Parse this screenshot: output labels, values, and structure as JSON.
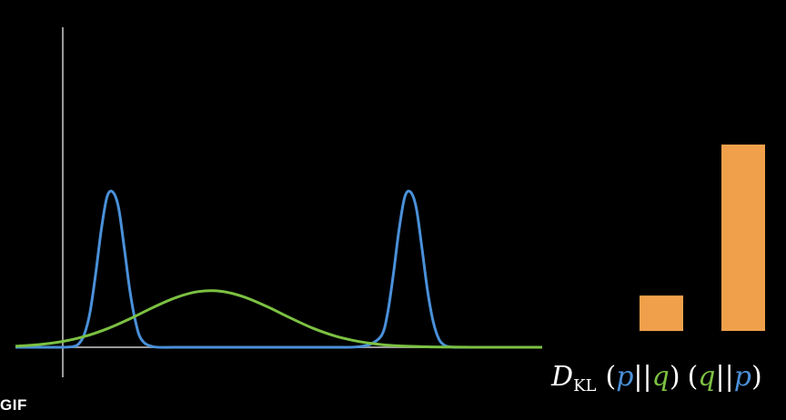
{
  "badge": "GIF",
  "colors": {
    "background": "#000000",
    "p": "#4a90d9",
    "q": "#7cc142",
    "bar": "#f0a04b",
    "axis": "#9a9a9a",
    "text": "#ffffff"
  },
  "chart_data": [
    {
      "type": "line",
      "title": "",
      "xlabel": "",
      "ylabel": "",
      "grid": false,
      "xlim": [
        -2.0,
        2.6
      ],
      "ylim": [
        0,
        1.3
      ],
      "series": [
        {
          "name": "p",
          "color": "#4a90d9",
          "x": [
            -2.0,
            -1.8,
            -1.6,
            -1.5,
            -1.45,
            -1.4,
            -1.35,
            -1.3,
            -1.25,
            -1.2,
            -1.15,
            -1.1,
            -1.05,
            -1.0,
            -0.95,
            -0.9,
            -0.8,
            -0.6,
            -0.2,
            0.2,
            0.6,
            0.9,
            1.0,
            1.1,
            1.2,
            1.25,
            1.3,
            1.35,
            1.4,
            1.45,
            1.5,
            1.55,
            1.6,
            1.65,
            1.7,
            1.75,
            1.8,
            1.85,
            1.9,
            2.0,
            2.2,
            2.6
          ],
          "y": [
            0,
            0,
            0,
            0.004,
            0.02,
            0.08,
            0.22,
            0.47,
            0.76,
            0.97,
            1.0,
            0.9,
            0.64,
            0.36,
            0.16,
            0.05,
            0.004,
            0,
            0,
            0,
            0,
            0,
            0.004,
            0.02,
            0.08,
            0.22,
            0.47,
            0.76,
            0.97,
            1.0,
            0.9,
            0.64,
            0.36,
            0.16,
            0.05,
            0.012,
            0.002,
            0,
            0,
            0,
            0,
            0
          ]
        },
        {
          "name": "q",
          "color": "#7cc142",
          "x": [
            -2.0,
            -1.8,
            -1.6,
            -1.4,
            -1.2,
            -1.0,
            -0.8,
            -0.6,
            -0.4,
            -0.2,
            0.0,
            0.2,
            0.4,
            0.6,
            0.8,
            1.0,
            1.2,
            1.4,
            1.6,
            1.8,
            2.0,
            2.2,
            2.4,
            2.6
          ],
          "y": [
            0.007,
            0.017,
            0.036,
            0.069,
            0.119,
            0.184,
            0.256,
            0.32,
            0.359,
            0.36,
            0.323,
            0.261,
            0.189,
            0.122,
            0.071,
            0.037,
            0.017,
            0.007,
            0.003,
            0.001,
            0,
            0,
            0,
            0
          ]
        }
      ]
    },
    {
      "type": "bar",
      "title": "",
      "categories": [
        "(p||q)",
        "(q||p)"
      ],
      "values": [
        0.19,
        1.0
      ],
      "ylim": [
        0,
        1.0
      ],
      "label": {
        "main": "D",
        "sub": "KL",
        "groups": [
          {
            "open": "(",
            "first": "p",
            "sep": "||",
            "second": "q",
            "close": ")"
          },
          {
            "open": "(",
            "first": "q",
            "sep": "||",
            "second": "p",
            "close": ")"
          }
        ]
      }
    }
  ]
}
